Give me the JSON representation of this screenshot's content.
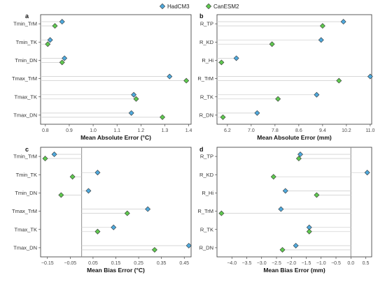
{
  "legend": [
    {
      "name": "HadCM3",
      "color": "#4ea9dd"
    },
    {
      "name": "CanESM2",
      "color": "#5fc94f"
    }
  ],
  "chart_data": [
    {
      "type": "scatter",
      "panel": "a",
      "categories": [
        "Tmin_TrM",
        "Tmin_TK",
        "Tmin_DN",
        "Tmax_TrM",
        "Tmax_TK",
        "Tmax_DN"
      ],
      "series": [
        {
          "name": "HadCM3",
          "values": [
            0.87,
            0.82,
            0.88,
            1.32,
            1.17,
            1.16
          ]
        },
        {
          "name": "CanESM2",
          "values": [
            0.84,
            0.81,
            0.87,
            1.39,
            1.18,
            1.29
          ]
        }
      ],
      "xlabel": "Mean Absolute Error (°C)",
      "xlim": [
        0.78,
        1.41
      ],
      "xticks": [
        0.8,
        0.9,
        1.0,
        1.1,
        1.2,
        1.3,
        1.4
      ],
      "xtick_labels": [
        "0.8",
        "0.9",
        "1.0",
        "1.1",
        "1.2",
        "1.3",
        "1.4"
      ],
      "zero_line": false
    },
    {
      "type": "scatter",
      "panel": "b",
      "categories": [
        "R_TP",
        "R_KD",
        "R_Hi",
        "R_TrM",
        "R_TK",
        "R_DN"
      ],
      "series": [
        {
          "name": "HadCM3",
          "values": [
            10.1,
            9.35,
            6.5,
            11.0,
            9.2,
            7.2
          ]
        },
        {
          "name": "CanESM2",
          "values": [
            9.4,
            7.7,
            6.0,
            9.95,
            7.9,
            6.05
          ]
        }
      ],
      "xlabel": "Mean Absolute Error (mm)",
      "xlim": [
        5.85,
        11.05
      ],
      "xticks": [
        6.2,
        7.0,
        7.8,
        8.6,
        9.4,
        10.2,
        11.0
      ],
      "xtick_labels": [
        "6.2",
        "7.0",
        "7.8",
        "8.6",
        "9.4",
        "10.2",
        "11.0"
      ],
      "zero_line": false
    },
    {
      "type": "scatter",
      "panel": "c",
      "categories": [
        "Tmin_TrM",
        "Tmin_TK",
        "Tmin_DN",
        "Tmax_TrM",
        "Tmax_TK",
        "Tmax_DN"
      ],
      "series": [
        {
          "name": "HadCM3",
          "values": [
            -0.12,
            0.07,
            0.03,
            0.29,
            0.14,
            0.47
          ]
        },
        {
          "name": "CanESM2",
          "values": [
            -0.16,
            -0.04,
            -0.09,
            0.2,
            0.07,
            0.32
          ]
        }
      ],
      "xlabel": "Mean Bias Error (°C)",
      "xlim": [
        -0.18,
        0.48
      ],
      "xticks": [
        -0.15,
        -0.05,
        0.05,
        0.15,
        0.25,
        0.35,
        0.45
      ],
      "xtick_labels": [
        "−0.15",
        "−0.05",
        "0.05",
        "0.15",
        "0.25",
        "0.35",
        "0.45"
      ],
      "zero_line": true
    },
    {
      "type": "scatter",
      "panel": "d",
      "categories": [
        "R_TP",
        "R_KD",
        "R_Hi",
        "R_TrM",
        "R_TK",
        "R_DN"
      ],
      "series": [
        {
          "name": "HadCM3",
          "values": [
            -1.7,
            0.55,
            -2.2,
            -2.35,
            -1.4,
            -1.85
          ]
        },
        {
          "name": "CanESM2",
          "values": [
            -1.75,
            -2.6,
            -1.15,
            -4.35,
            -1.4,
            -2.3
          ]
        }
      ],
      "xlabel": "Mean Bias Error (mm)",
      "xlim": [
        -4.5,
        0.7
      ],
      "xticks": [
        -4.0,
        -3.5,
        -3.0,
        -2.5,
        -2.0,
        -1.5,
        -1.0,
        -0.5,
        0.0,
        0.5
      ],
      "xtick_labels": [
        "−4.0",
        "−3.5",
        "−3.0",
        "−2.5",
        "−2.0",
        "−1.5",
        "−1.0",
        "−0.5",
        "0.0",
        "0.5"
      ],
      "zero_line": true
    }
  ]
}
